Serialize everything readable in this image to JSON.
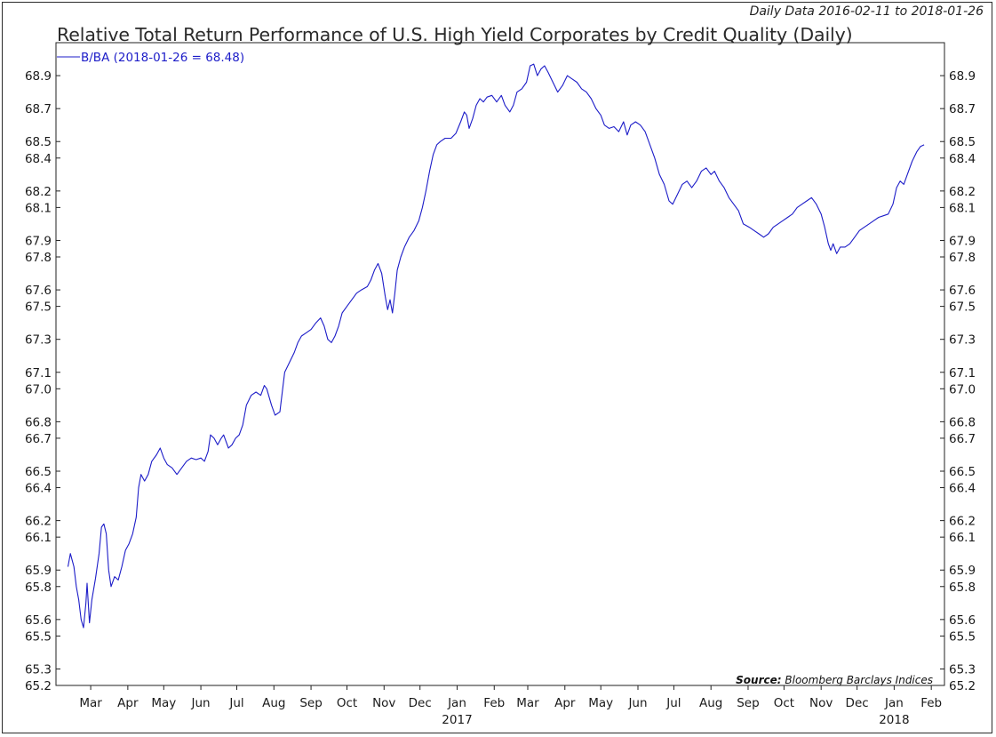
{
  "header": {
    "subtitle": "Daily Data 2016-02-11 to 2018-01-26",
    "title": "Relative Total Return Performance of U.S. High Yield Corporates by Credit Quality (Daily)"
  },
  "source": {
    "label": "Source:",
    "text": "Bloomberg Barclays Indices"
  },
  "colors": {
    "series": "#1c1cc8",
    "axis": "#222222",
    "background": "#ffffff"
  },
  "chart_data": {
    "type": "line",
    "title": "Relative Total Return Performance of U.S. High Yield Corporates by Credit Quality (Daily)",
    "subtitle": "Daily Data 2016-02-11 to 2018-01-26",
    "xlabel": "",
    "ylabel": "",
    "xlim": [
      "2016-02-01",
      "2018-02-12"
    ],
    "ylim": [
      65.2,
      69.1
    ],
    "grid": false,
    "legend_position": "top-left",
    "y_ticks": [
      "65.2",
      "65.3",
      "65.5",
      "65.6",
      "65.8",
      "65.9",
      "66.1",
      "66.2",
      "66.4",
      "66.5",
      "66.7",
      "66.8",
      "67.0",
      "67.1",
      "67.3",
      "67.5",
      "67.6",
      "67.8",
      "67.9",
      "68.1",
      "68.2",
      "68.4",
      "68.5",
      "68.7",
      "68.9"
    ],
    "x_ticks": [
      {
        "label": "Mar",
        "date": "2016-03-01",
        "year": ""
      },
      {
        "label": "Apr",
        "date": "2016-04-01",
        "year": ""
      },
      {
        "label": "May",
        "date": "2016-05-01",
        "year": ""
      },
      {
        "label": "Jun",
        "date": "2016-06-01",
        "year": ""
      },
      {
        "label": "Jul",
        "date": "2016-07-01",
        "year": ""
      },
      {
        "label": "Aug",
        "date": "2016-08-01",
        "year": ""
      },
      {
        "label": "Sep",
        "date": "2016-09-01",
        "year": ""
      },
      {
        "label": "Oct",
        "date": "2016-10-01",
        "year": ""
      },
      {
        "label": "Nov",
        "date": "2016-11-01",
        "year": ""
      },
      {
        "label": "Dec",
        "date": "2016-12-01",
        "year": ""
      },
      {
        "label": "Jan",
        "date": "2017-01-01",
        "year": "2017"
      },
      {
        "label": "Feb",
        "date": "2017-02-01",
        "year": ""
      },
      {
        "label": "Mar",
        "date": "2017-03-01",
        "year": ""
      },
      {
        "label": "Apr",
        "date": "2017-04-01",
        "year": ""
      },
      {
        "label": "May",
        "date": "2017-05-01",
        "year": ""
      },
      {
        "label": "Jun",
        "date": "2017-06-01",
        "year": ""
      },
      {
        "label": "Jul",
        "date": "2017-07-01",
        "year": ""
      },
      {
        "label": "Aug",
        "date": "2017-08-01",
        "year": ""
      },
      {
        "label": "Sep",
        "date": "2017-09-01",
        "year": ""
      },
      {
        "label": "Oct",
        "date": "2017-10-01",
        "year": ""
      },
      {
        "label": "Nov",
        "date": "2017-11-01",
        "year": ""
      },
      {
        "label": "Dec",
        "date": "2017-12-01",
        "year": ""
      },
      {
        "label": "Jan",
        "date": "2018-01-01",
        "year": "2018"
      },
      {
        "label": "Feb",
        "date": "2018-02-01",
        "year": ""
      }
    ],
    "series": [
      {
        "name": "B/BA (2018-01-26 = 68.48)",
        "color": "#1c1cc8",
        "points": [
          [
            "2016-02-11",
            65.92
          ],
          [
            "2016-02-13",
            66.0
          ],
          [
            "2016-02-16",
            65.92
          ],
          [
            "2016-02-18",
            65.8
          ],
          [
            "2016-02-20",
            65.72
          ],
          [
            "2016-02-22",
            65.6
          ],
          [
            "2016-02-24",
            65.55
          ],
          [
            "2016-02-26",
            65.7
          ],
          [
            "2016-02-27",
            65.82
          ],
          [
            "2016-02-29",
            65.58
          ],
          [
            "2016-03-02",
            65.72
          ],
          [
            "2016-03-05",
            65.85
          ],
          [
            "2016-03-08",
            66.0
          ],
          [
            "2016-03-10",
            66.16
          ],
          [
            "2016-03-12",
            66.18
          ],
          [
            "2016-03-14",
            66.12
          ],
          [
            "2016-03-16",
            65.9
          ],
          [
            "2016-03-18",
            65.8
          ],
          [
            "2016-03-21",
            65.86
          ],
          [
            "2016-03-24",
            65.84
          ],
          [
            "2016-03-27",
            65.92
          ],
          [
            "2016-03-30",
            66.02
          ],
          [
            "2016-04-02",
            66.06
          ],
          [
            "2016-04-05",
            66.12
          ],
          [
            "2016-04-08",
            66.22
          ],
          [
            "2016-04-10",
            66.4
          ],
          [
            "2016-04-12",
            66.48
          ],
          [
            "2016-04-15",
            66.44
          ],
          [
            "2016-04-18",
            66.48
          ],
          [
            "2016-04-21",
            66.56
          ],
          [
            "2016-04-25",
            66.6
          ],
          [
            "2016-04-28",
            66.64
          ],
          [
            "2016-05-01",
            66.58
          ],
          [
            "2016-05-04",
            66.54
          ],
          [
            "2016-05-08",
            66.52
          ],
          [
            "2016-05-12",
            66.48
          ],
          [
            "2016-05-16",
            66.52
          ],
          [
            "2016-05-20",
            66.56
          ],
          [
            "2016-05-24",
            66.58
          ],
          [
            "2016-05-28",
            66.57
          ],
          [
            "2016-06-01",
            66.58
          ],
          [
            "2016-06-04",
            66.56
          ],
          [
            "2016-06-07",
            66.62
          ],
          [
            "2016-06-09",
            66.72
          ],
          [
            "2016-06-12",
            66.7
          ],
          [
            "2016-06-15",
            66.66
          ],
          [
            "2016-06-18",
            66.7
          ],
          [
            "2016-06-20",
            66.72
          ],
          [
            "2016-06-24",
            66.64
          ],
          [
            "2016-06-27",
            66.66
          ],
          [
            "2016-06-30",
            66.7
          ],
          [
            "2016-07-03",
            66.72
          ],
          [
            "2016-07-06",
            66.78
          ],
          [
            "2016-07-09",
            66.9
          ],
          [
            "2016-07-13",
            66.96
          ],
          [
            "2016-07-17",
            66.98
          ],
          [
            "2016-07-21",
            66.96
          ],
          [
            "2016-07-24",
            67.02
          ],
          [
            "2016-07-26",
            67.0
          ],
          [
            "2016-07-30",
            66.9
          ],
          [
            "2016-08-02",
            66.84
          ],
          [
            "2016-08-06",
            66.86
          ],
          [
            "2016-08-08",
            66.98
          ],
          [
            "2016-08-10",
            67.1
          ],
          [
            "2016-08-14",
            67.16
          ],
          [
            "2016-08-18",
            67.22
          ],
          [
            "2016-08-21",
            67.28
          ],
          [
            "2016-08-24",
            67.32
          ],
          [
            "2016-08-28",
            67.34
          ],
          [
            "2016-09-01",
            67.36
          ],
          [
            "2016-09-05",
            67.4
          ],
          [
            "2016-09-09",
            67.43
          ],
          [
            "2016-09-12",
            67.38
          ],
          [
            "2016-09-15",
            67.3
          ],
          [
            "2016-09-18",
            67.28
          ],
          [
            "2016-09-21",
            67.32
          ],
          [
            "2016-09-24",
            67.38
          ],
          [
            "2016-09-27",
            67.46
          ],
          [
            "2016-10-01",
            67.5
          ],
          [
            "2016-10-05",
            67.54
          ],
          [
            "2016-10-09",
            67.58
          ],
          [
            "2016-10-13",
            67.6
          ],
          [
            "2016-10-18",
            67.62
          ],
          [
            "2016-10-21",
            67.66
          ],
          [
            "2016-10-24",
            67.72
          ],
          [
            "2016-10-27",
            67.76
          ],
          [
            "2016-10-30",
            67.7
          ],
          [
            "2016-11-02",
            67.56
          ],
          [
            "2016-11-04",
            67.48
          ],
          [
            "2016-11-06",
            67.54
          ],
          [
            "2016-11-08",
            67.46
          ],
          [
            "2016-11-10",
            67.58
          ],
          [
            "2016-11-12",
            67.72
          ],
          [
            "2016-11-15",
            67.8
          ],
          [
            "2016-11-18",
            67.86
          ],
          [
            "2016-11-22",
            67.92
          ],
          [
            "2016-11-26",
            67.96
          ],
          [
            "2016-11-30",
            68.02
          ],
          [
            "2016-12-03",
            68.1
          ],
          [
            "2016-12-06",
            68.2
          ],
          [
            "2016-12-09",
            68.32
          ],
          [
            "2016-12-12",
            68.42
          ],
          [
            "2016-12-15",
            68.48
          ],
          [
            "2016-12-18",
            68.5
          ],
          [
            "2016-12-22",
            68.52
          ],
          [
            "2016-12-27",
            68.52
          ],
          [
            "2016-12-31",
            68.55
          ],
          [
            "2017-01-04",
            68.62
          ],
          [
            "2017-01-07",
            68.68
          ],
          [
            "2017-01-09",
            68.66
          ],
          [
            "2017-01-11",
            68.58
          ],
          [
            "2017-01-14",
            68.64
          ],
          [
            "2017-01-17",
            68.72
          ],
          [
            "2017-01-20",
            68.76
          ],
          [
            "2017-01-23",
            68.74
          ],
          [
            "2017-01-26",
            68.77
          ],
          [
            "2017-01-30",
            68.78
          ],
          [
            "2017-02-03",
            68.74
          ],
          [
            "2017-02-07",
            68.78
          ],
          [
            "2017-02-10",
            68.72
          ],
          [
            "2017-02-14",
            68.68
          ],
          [
            "2017-02-17",
            68.72
          ],
          [
            "2017-02-20",
            68.8
          ],
          [
            "2017-02-24",
            68.82
          ],
          [
            "2017-02-28",
            68.86
          ],
          [
            "2017-03-03",
            68.96
          ],
          [
            "2017-03-06",
            68.97
          ],
          [
            "2017-03-09",
            68.9
          ],
          [
            "2017-03-12",
            68.94
          ],
          [
            "2017-03-15",
            68.96
          ],
          [
            "2017-03-18",
            68.92
          ],
          [
            "2017-03-22",
            68.86
          ],
          [
            "2017-03-26",
            68.8
          ],
          [
            "2017-03-30",
            68.84
          ],
          [
            "2017-04-03",
            68.9
          ],
          [
            "2017-04-07",
            68.88
          ],
          [
            "2017-04-11",
            68.86
          ],
          [
            "2017-04-15",
            68.82
          ],
          [
            "2017-04-19",
            68.8
          ],
          [
            "2017-04-23",
            68.76
          ],
          [
            "2017-04-27",
            68.7
          ],
          [
            "2017-05-01",
            68.66
          ],
          [
            "2017-05-04",
            68.6
          ],
          [
            "2017-05-08",
            68.58
          ],
          [
            "2017-05-12",
            68.59
          ],
          [
            "2017-05-16",
            68.56
          ],
          [
            "2017-05-20",
            68.62
          ],
          [
            "2017-05-23",
            68.54
          ],
          [
            "2017-05-26",
            68.6
          ],
          [
            "2017-05-30",
            68.62
          ],
          [
            "2017-06-03",
            68.6
          ],
          [
            "2017-06-07",
            68.56
          ],
          [
            "2017-06-11",
            68.48
          ],
          [
            "2017-06-15",
            68.4
          ],
          [
            "2017-06-19",
            68.3
          ],
          [
            "2017-06-23",
            68.24
          ],
          [
            "2017-06-27",
            68.14
          ],
          [
            "2017-06-30",
            68.12
          ],
          [
            "2017-07-04",
            68.18
          ],
          [
            "2017-07-08",
            68.24
          ],
          [
            "2017-07-12",
            68.26
          ],
          [
            "2017-07-16",
            68.22
          ],
          [
            "2017-07-20",
            68.26
          ],
          [
            "2017-07-24",
            68.32
          ],
          [
            "2017-07-28",
            68.34
          ],
          [
            "2017-08-01",
            68.3
          ],
          [
            "2017-08-04",
            68.32
          ],
          [
            "2017-08-08",
            68.26
          ],
          [
            "2017-08-12",
            68.22
          ],
          [
            "2017-08-16",
            68.16
          ],
          [
            "2017-08-20",
            68.12
          ],
          [
            "2017-08-24",
            68.08
          ],
          [
            "2017-08-28",
            68.0
          ],
          [
            "2017-09-02",
            67.98
          ],
          [
            "2017-09-06",
            67.96
          ],
          [
            "2017-09-10",
            67.94
          ],
          [
            "2017-09-14",
            67.92
          ],
          [
            "2017-09-18",
            67.94
          ],
          [
            "2017-09-22",
            67.98
          ],
          [
            "2017-09-26",
            68.0
          ],
          [
            "2017-09-30",
            68.02
          ],
          [
            "2017-10-04",
            68.04
          ],
          [
            "2017-10-08",
            68.06
          ],
          [
            "2017-10-12",
            68.1
          ],
          [
            "2017-10-16",
            68.12
          ],
          [
            "2017-10-20",
            68.14
          ],
          [
            "2017-10-24",
            68.16
          ],
          [
            "2017-10-28",
            68.12
          ],
          [
            "2017-11-01",
            68.06
          ],
          [
            "2017-11-04",
            67.98
          ],
          [
            "2017-11-07",
            67.88
          ],
          [
            "2017-11-09",
            67.84
          ],
          [
            "2017-11-11",
            67.88
          ],
          [
            "2017-11-14",
            67.82
          ],
          [
            "2017-11-17",
            67.86
          ],
          [
            "2017-11-21",
            67.86
          ],
          [
            "2017-11-25",
            67.88
          ],
          [
            "2017-11-29",
            67.92
          ],
          [
            "2017-12-03",
            67.96
          ],
          [
            "2017-12-07",
            67.98
          ],
          [
            "2017-12-11",
            68.0
          ],
          [
            "2017-12-15",
            68.02
          ],
          [
            "2017-12-19",
            68.04
          ],
          [
            "2017-12-23",
            68.05
          ],
          [
            "2017-12-27",
            68.06
          ],
          [
            "2017-12-31",
            68.12
          ],
          [
            "2018-01-03",
            68.22
          ],
          [
            "2018-01-06",
            68.26
          ],
          [
            "2018-01-09",
            68.24
          ],
          [
            "2018-01-12",
            68.3
          ],
          [
            "2018-01-16",
            68.38
          ],
          [
            "2018-01-20",
            68.44
          ],
          [
            "2018-01-23",
            68.47
          ],
          [
            "2018-01-26",
            68.48
          ]
        ]
      }
    ]
  }
}
